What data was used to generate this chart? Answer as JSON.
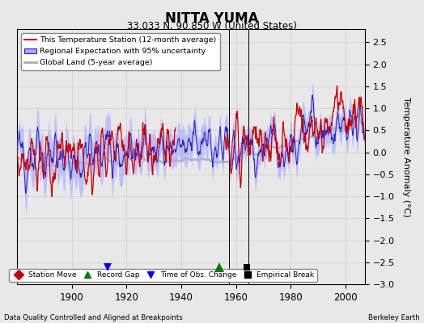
{
  "title": "NITTA YUMA",
  "subtitle": "33.033 N, 90.850 W (United States)",
  "ylabel": "Temperature Anomaly (°C)",
  "xlabel_left": "Data Quality Controlled and Aligned at Breakpoints",
  "xlabel_right": "Berkeley Earth",
  "ylim": [
    -3.0,
    2.8
  ],
  "yticks": [
    -3,
    -2.5,
    -2,
    -1.5,
    -1,
    -0.5,
    0,
    0.5,
    1,
    1.5,
    2,
    2.5
  ],
  "xlim": [
    1880,
    2007
  ],
  "xticks": [
    1900,
    1920,
    1940,
    1960,
    1980,
    2000
  ],
  "year_start": 1880,
  "year_end": 2006,
  "background_color": "#e8e8e8",
  "plot_bg_color": "#e8e8e8",
  "legend_entries": [
    "This Temperature Station (12-month average)",
    "Regional Expectation with 95% uncertainty",
    "Global Land (5-year average)"
  ],
  "uncertainty_color": "#aaaaff",
  "regional_line_color": "#2222cc",
  "station_line_color": "#cc0000",
  "global_land_color": "#aaaaaa",
  "seed": 12345,
  "marker_record_gap_x": 1954,
  "marker_empirical_break_x": 1964,
  "marker_time_obs_x": 1913,
  "marker_y_level": -2.62
}
